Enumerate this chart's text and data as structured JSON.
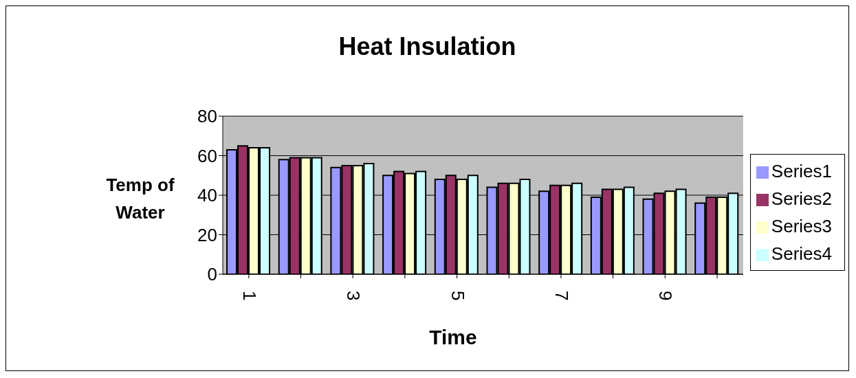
{
  "chart_data": {
    "type": "bar",
    "title": "Heat Insulation",
    "xlabel": "Time",
    "ylabel": "Temp of Water",
    "categories": [
      "1",
      null,
      "3",
      null,
      "5",
      null,
      "7",
      null,
      "9",
      null
    ],
    "series": [
      {
        "name": "Series1",
        "color": "#9999ff",
        "values": [
          63,
          58,
          54,
          50,
          48,
          44,
          42,
          39,
          38,
          36
        ]
      },
      {
        "name": "Series2",
        "color": "#993366",
        "values": [
          65,
          59,
          55,
          52,
          50,
          46,
          45,
          43,
          41,
          39
        ]
      },
      {
        "name": "Series3",
        "color": "#ffffcc",
        "values": [
          64,
          59,
          55,
          51,
          48,
          46,
          45,
          43,
          42,
          39
        ]
      },
      {
        "name": "Series4",
        "color": "#ccffff",
        "values": [
          64,
          59,
          56,
          52,
          50,
          48,
          46,
          44,
          43,
          41
        ]
      }
    ],
    "ylim": [
      0,
      80
    ],
    "yticks": [
      0,
      20,
      40,
      60,
      80
    ],
    "grid": "y",
    "legend": "right"
  }
}
